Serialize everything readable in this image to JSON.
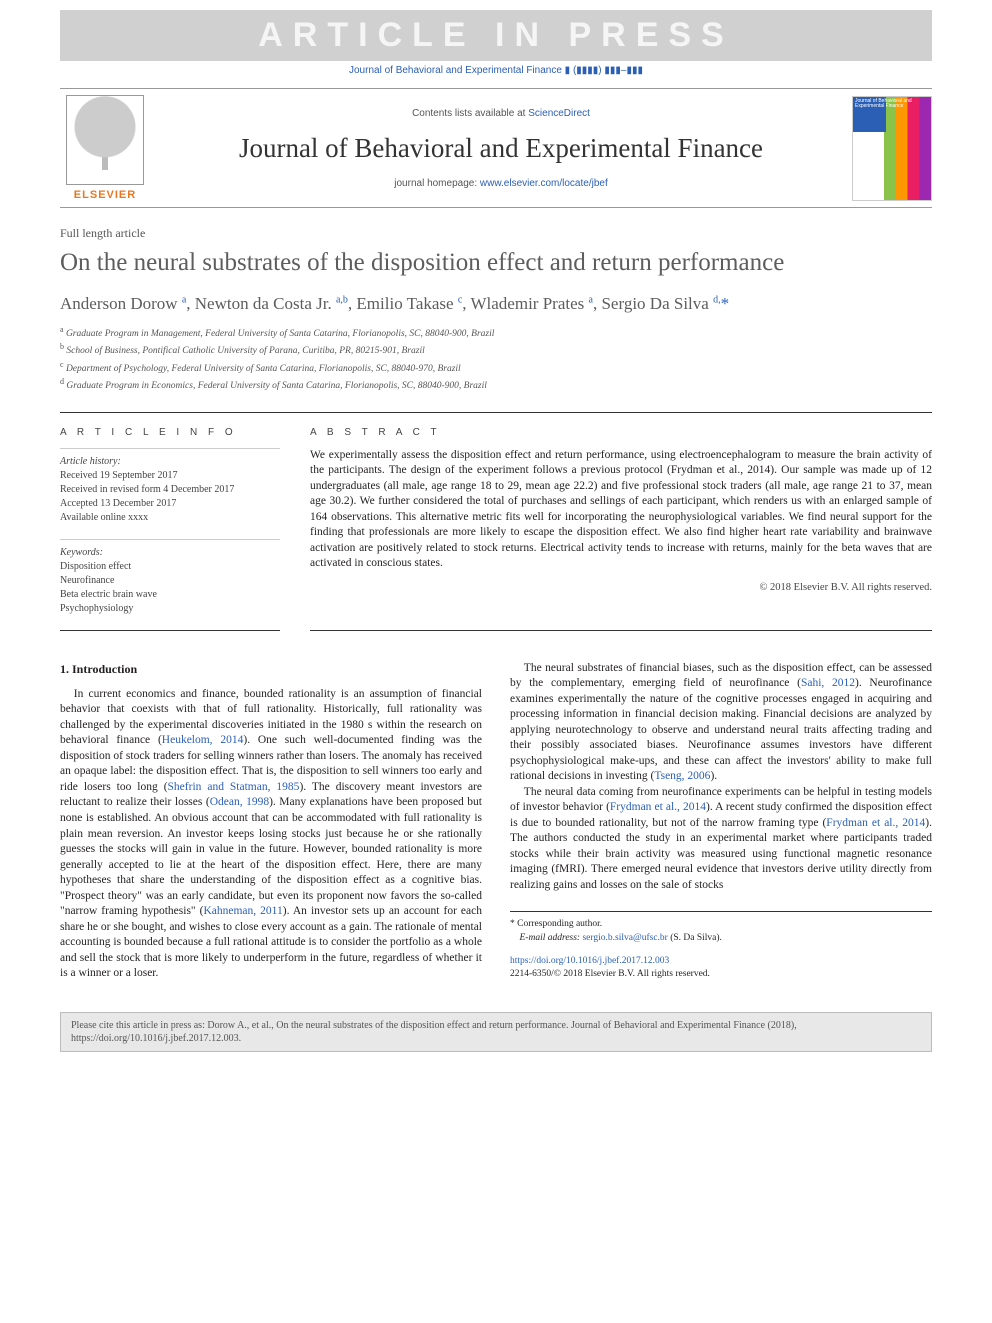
{
  "watermark": "ARTICLE IN PRESS",
  "journal_ref": "Journal of Behavioral and Experimental Finance ▮ (▮▮▮▮) ▮▮▮–▮▮▮",
  "masthead": {
    "contents_prefix": "Contents lists available at ",
    "contents_link": "ScienceDirect",
    "journal_title": "Journal of Behavioral and Experimental Finance",
    "homepage_prefix": "journal homepage: ",
    "homepage_link": "www.elsevier.com/locate/jbef",
    "publisher": "ELSEVIER",
    "cover_text": "Journal of Behavioral and Experimental Finance"
  },
  "article_type": "Full length article",
  "title": "On the neural substrates of the disposition effect and return performance",
  "authors_html": "Anderson Dorow <sup>a</sup>, Newton da Costa Jr. <sup>a,b</sup>, Emilio Takase <sup>c</sup>, Wlademir Prates <sup>a</sup>, Sergio Da Silva <sup>d,</sup><span class='star'>*</span>",
  "affiliations": [
    "a  Graduate Program in Management, Federal University of Santa Catarina, Florianopolis, SC, 88040-900, Brazil",
    "b  School of Business, Pontifical Catholic University of Parana, Curitiba, PR, 80215-901, Brazil",
    "c  Department of Psychology, Federal University of Santa Catarina, Florianopolis, SC, 88040-970, Brazil",
    "d  Graduate Program in Economics, Federal University of Santa Catarina, Florianopolis, SC, 88040-900, Brazil"
  ],
  "info_heading": "A R T I C L E   I N F O",
  "abstract_heading": "A B S T R A C T",
  "history": {
    "label": "Article history:",
    "lines": [
      "Received 19 September 2017",
      "Received in revised form 4 December 2017",
      "Accepted 13 December 2017",
      "Available online xxxx"
    ]
  },
  "keywords": {
    "label": "Keywords:",
    "items": [
      "Disposition effect",
      "Neurofinance",
      "Beta electric brain wave",
      "Psychophysiology"
    ]
  },
  "abstract": "We experimentally assess the disposition effect and return performance, using electroencephalogram to measure the brain activity of the participants. The design of the experiment follows a previous protocol (Frydman et al., 2014). Our sample was made up of 12 undergraduates (all male, age range 18 to 29, mean age 22.2) and five professional stock traders (all male, age range 21 to 37, mean age 30.2). We further considered the total of purchases and sellings of each participant, which renders us with an enlarged sample of 164 observations. This alternative metric fits well for incorporating the neurophysiological variables. We find neural support for the finding that professionals are more likely to escape the disposition effect. We also find higher heart rate variability and brainwave activation are positively related to stock returns. Electrical activity tends to increase with returns, mainly for the beta waves that are activated in conscious states.",
  "copyright": "© 2018 Elsevier B.V. All rights reserved.",
  "section1_head": "1. Introduction",
  "para1": "In current economics and finance, bounded rationality is an assumption of financial behavior that coexists with that of full rationality. Historically, full rationality was challenged by the experimental discoveries initiated in the 1980 s within the research on behavioral finance (<a>Heukelom, 2014</a>). One such well-documented finding was the disposition of stock traders for selling winners rather than losers. The anomaly has received an opaque label: the disposition effect. That is, the disposition to sell winners too early and ride losers too long (<a>Shefrin and Statman, 1985</a>). The discovery meant investors are reluctant to realize their losses (<a>Odean, 1998</a>). Many explanations have been proposed but none is established. An obvious account that can be accommodated with full rationality is plain mean reversion. An investor keeps losing stocks just because he or she rationally guesses the stocks will gain in value in the future. However, bounded rationality is more generally accepted to lie at the heart of the disposition effect. Here, there are many hypotheses that share the understanding of the disposition effect as a cognitive bias. \"Prospect theory\" was an early candidate, but even its proponent now favors the so-called \"narrow framing hypothesis\" (<a>Kahneman, 2011</a>). An investor sets up an account for each share he or she bought, and wishes to close every account as a gain. The rationale of mental accounting is bounded because a full rational attitude is to consider the portfolio as a whole and sell the stock that is more likely to underperform in the future, regardless of whether it is a winner or a loser.",
  "para2": "The neural substrates of financial biases, such as the disposition effect, can be assessed by the complementary, emerging field of neurofinance (<a>Sahi, 2012</a>). Neurofinance examines experimentally the nature of the cognitive processes engaged in acquiring and processing information in financial decision making. Financial decisions are analyzed by applying neurotechnology to observe and understand neural traits affecting trading and their possibly associated biases. Neurofinance assumes investors have different psychophysiological make-ups, and these can affect the investors' ability to make full rational decisions in investing (<a>Tseng, 2006</a>).",
  "para3": "The neural data coming from neurofinance experiments can be helpful in testing models of investor behavior (<a>Frydman et al., 2014</a>). A recent study confirmed the disposition effect is due to bounded rationality, but not of the narrow framing type (<a>Frydman et al., 2014</a>). The authors conducted the study in an experimental market where participants traded stocks while their brain activity was measured using functional magnetic resonance imaging (fMRI). There emerged neural evidence that investors derive utility directly from realizing gains and losses on the sale of stocks",
  "footnote": {
    "star": "* Corresponding author.",
    "email_label": "E-mail address:",
    "email": "sergio.b.silva@ufsc.br",
    "email_suffix": "(S. Da Silva)."
  },
  "doi": {
    "link": "https://doi.org/10.1016/j.jbef.2017.12.003",
    "line": "2214-6350/© 2018 Elsevier B.V. All rights reserved."
  },
  "footer_cite": "Please cite this article in press as: Dorow A., et al., On the neural substrates of the disposition effect and return performance. Journal of Behavioral and Experimental Finance (2018), https://doi.org/10.1016/j.jbef.2017.12.003.",
  "colors": {
    "link": "#2b5fb5",
    "publisher": "#e87722",
    "text": "#231f20",
    "muted": "#5d5d5d"
  }
}
